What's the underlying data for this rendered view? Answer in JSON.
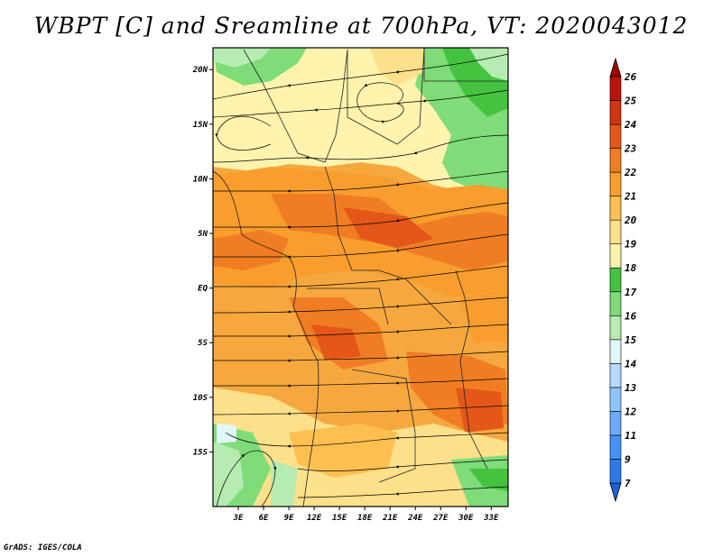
{
  "title": "WBPT [C] and Sreamline at 700hPa, VT: 2020043012",
  "credit": "GrADS: IGES/COLA",
  "map": {
    "lon_range": [
      0,
      35
    ],
    "lat_range": [
      -20,
      22
    ],
    "lat_ticks": [
      {
        "value": 20,
        "label": "20N"
      },
      {
        "value": 15,
        "label": "15N"
      },
      {
        "value": 10,
        "label": "10N"
      },
      {
        "value": 5,
        "label": "5N"
      },
      {
        "value": 0,
        "label": "EQ"
      },
      {
        "value": -5,
        "label": "5S"
      },
      {
        "value": -10,
        "label": "10S"
      },
      {
        "value": -15,
        "label": "15S"
      }
    ],
    "lon_ticks": [
      {
        "value": 3,
        "label": "3E"
      },
      {
        "value": 6,
        "label": "6E"
      },
      {
        "value": 9,
        "label": "9E"
      },
      {
        "value": 12,
        "label": "12E"
      },
      {
        "value": 15,
        "label": "15E"
      },
      {
        "value": 18,
        "label": "18E"
      },
      {
        "value": 21,
        "label": "21E"
      },
      {
        "value": 24,
        "label": "24E"
      },
      {
        "value": 27,
        "label": "27E"
      },
      {
        "value": 30,
        "label": "30E"
      },
      {
        "value": 33,
        "label": "33E"
      }
    ]
  },
  "colorbar": {
    "levels": [
      "7",
      "9",
      "11",
      "12",
      "13",
      "14",
      "15",
      "16",
      "17",
      "18",
      "19",
      "20",
      "21",
      "22",
      "23",
      "24",
      "25",
      "26"
    ],
    "colors": [
      "#1f5fd9",
      "#2e78eb",
      "#4791f5",
      "#6aaaf8",
      "#8fc4fb",
      "#b5dafd",
      "#e2f7f7",
      "#b6ecb1",
      "#7fdc79",
      "#45c340",
      "#fff3ad",
      "#fde08a",
      "#fcbf50",
      "#f99e2e",
      "#f07d23",
      "#e45719",
      "#d23411",
      "#b81509",
      "#a00000"
    ]
  }
}
